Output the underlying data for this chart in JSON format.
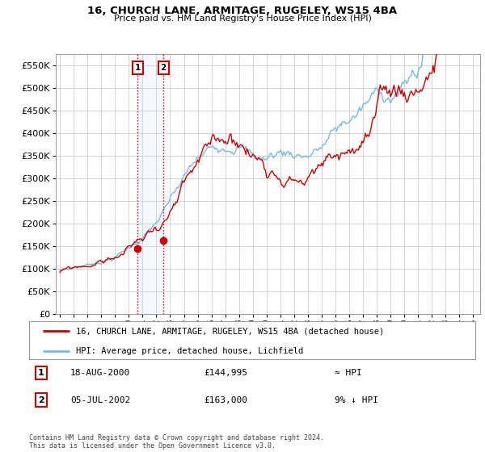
{
  "title": "16, CHURCH LANE, ARMITAGE, RUGELEY, WS15 4BA",
  "subtitle": "Price paid vs. HM Land Registry's House Price Index (HPI)",
  "legend_line1": "16, CHURCH LANE, ARMITAGE, RUGELEY, WS15 4BA (detached house)",
  "legend_line2": "HPI: Average price, detached house, Lichfield",
  "footer": "Contains HM Land Registry data © Crown copyright and database right 2024.\nThis data is licensed under the Open Government Licence v3.0.",
  "transaction1_label": "1",
  "transaction1_date": "18-AUG-2000",
  "transaction1_price": "£144,995",
  "transaction1_rel": "≈ HPI",
  "transaction2_label": "2",
  "transaction2_date": "05-JUL-2002",
  "transaction2_price": "£163,000",
  "transaction2_rel": "9% ↓ HPI",
  "transaction1_x": 2000.63,
  "transaction1_y": 144995,
  "transaction2_x": 2002.51,
  "transaction2_y": 163000,
  "hpi_color": "#7ab8e8",
  "price_color": "#cc0000",
  "background_color": "#ffffff",
  "grid_color": "#cccccc",
  "ylim": [
    0,
    575000
  ],
  "yticks": [
    0,
    50000,
    100000,
    150000,
    200000,
    250000,
    300000,
    350000,
    400000,
    450000,
    500000,
    550000
  ],
  "xlim_start": 1994.7,
  "xlim_end": 2025.5,
  "xticks": [
    1995,
    1996,
    1997,
    1998,
    1999,
    2000,
    2001,
    2002,
    2003,
    2004,
    2005,
    2006,
    2007,
    2008,
    2009,
    2010,
    2011,
    2012,
    2013,
    2014,
    2015,
    2016,
    2017,
    2018,
    2019,
    2020,
    2021,
    2022,
    2023,
    2024,
    2025
  ]
}
